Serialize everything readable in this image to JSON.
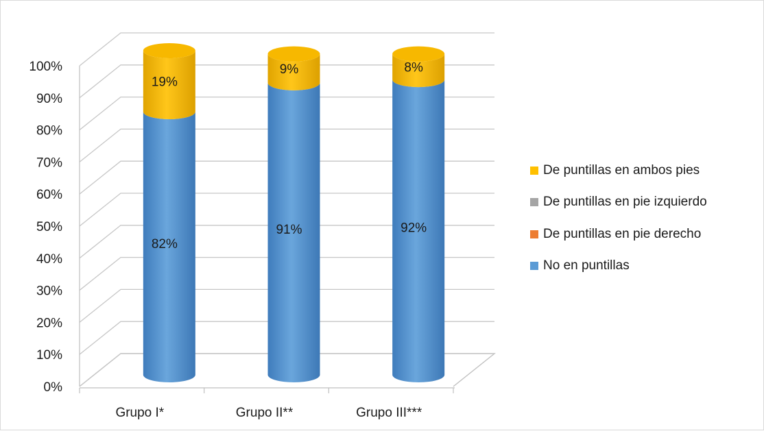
{
  "chart_data": {
    "type": "bar",
    "subtype": "stacked-100-cylinder",
    "title": "",
    "xlabel": "",
    "ylabel": "",
    "ylim": [
      0,
      100
    ],
    "y_ticks": [
      "0%",
      "10%",
      "20%",
      "30%",
      "40%",
      "50%",
      "60%",
      "70%",
      "80%",
      "90%",
      "100%"
    ],
    "categories": [
      "Grupo I*",
      "Grupo II**",
      "Grupo III***"
    ],
    "series": [
      {
        "name": "No en puntillas",
        "color": "#5b9bd5",
        "values": [
          82,
          91,
          92
        ],
        "labels": [
          "82%",
          "91%",
          "92%"
        ]
      },
      {
        "name": "De puntillas en pie derecho",
        "color": "#ed7d31",
        "values": [
          0,
          0,
          0
        ],
        "labels": [
          "",
          "",
          ""
        ]
      },
      {
        "name": "De puntillas en pie izquierdo",
        "color": "#a5a5a5",
        "values": [
          0,
          0,
          0
        ],
        "labels": [
          "",
          "",
          ""
        ]
      },
      {
        "name": "De puntillas en ambos pies",
        "color": "#ffc000",
        "values": [
          19,
          9,
          8
        ],
        "labels": [
          "19%",
          "9%",
          "8%"
        ]
      }
    ],
    "legend_order": [
      "De puntillas en ambos pies",
      "De puntillas en pie izquierdo",
      "De puntillas en pie derecho",
      "No en puntillas"
    ],
    "legend_position": "right",
    "grid": true
  }
}
